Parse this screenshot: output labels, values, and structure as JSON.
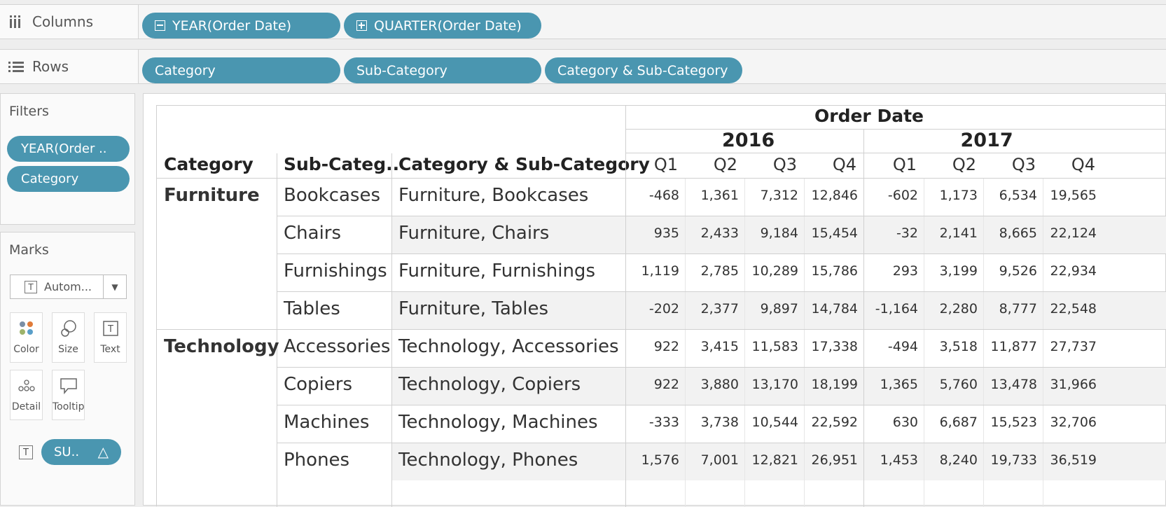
{
  "shelves": {
    "columns": {
      "label": "Columns",
      "pills": [
        "YEAR(Order Date)",
        "QUARTER(Order Date)"
      ]
    },
    "rows": {
      "label": "Rows",
      "pills": [
        "Category",
        "Sub-Category",
        "Category & Sub-Category"
      ]
    }
  },
  "filters": {
    "title": "Filters",
    "items": [
      "YEAR(Order ..",
      "Category"
    ]
  },
  "marks": {
    "title": "Marks",
    "type_select": "Autom...",
    "buttons": [
      "Color",
      "Size",
      "Text",
      "Detail",
      "Tooltip"
    ],
    "text_pill": "SU..",
    "text_pill_icon": "delta-icon"
  },
  "table": {
    "headers": {
      "category": "Category",
      "subcategory": "Sub-Categ..",
      "combo": "Category & Sub-Category",
      "order_date": "Order Date"
    },
    "years": [
      "2016",
      "2017"
    ],
    "quarters": [
      "Q1",
      "Q2",
      "Q3",
      "Q4",
      "Q1",
      "Q2",
      "Q3",
      "Q4"
    ],
    "categories": [
      {
        "name": "Furniture",
        "rows": [
          {
            "sub": "Bookcases",
            "combo": "Furniture, Bookcases",
            "values": [
              "-468",
              "1,361",
              "7,312",
              "12,846",
              "-602",
              "1,173",
              "6,534",
              "19,565"
            ]
          },
          {
            "sub": "Chairs",
            "combo": "Furniture, Chairs",
            "values": [
              "935",
              "2,433",
              "9,184",
              "15,454",
              "-32",
              "2,141",
              "8,665",
              "22,124"
            ]
          },
          {
            "sub": "Furnishings",
            "combo": "Furniture, Furnishings",
            "values": [
              "1,119",
              "2,785",
              "10,289",
              "15,786",
              "293",
              "3,199",
              "9,526",
              "22,934"
            ]
          },
          {
            "sub": "Tables",
            "combo": "Furniture, Tables",
            "values": [
              "-202",
              "2,377",
              "9,897",
              "14,784",
              "-1,164",
              "2,280",
              "8,777",
              "22,548"
            ]
          }
        ]
      },
      {
        "name": "Technology",
        "rows": [
          {
            "sub": "Accessories",
            "combo": "Technology, Accessories",
            "values": [
              "922",
              "3,415",
              "11,583",
              "17,338",
              "-494",
              "3,518",
              "11,877",
              "27,737"
            ]
          },
          {
            "sub": "Copiers",
            "combo": "Technology, Copiers",
            "values": [
              "922",
              "3,880",
              "13,170",
              "18,199",
              "1,365",
              "5,760",
              "13,478",
              "31,966"
            ]
          },
          {
            "sub": "Machines",
            "combo": "Technology, Machines",
            "values": [
              "-333",
              "3,738",
              "10,544",
              "22,592",
              "630",
              "6,687",
              "15,523",
              "32,706"
            ]
          },
          {
            "sub": "Phones",
            "combo": "Technology, Phones",
            "values": [
              "1,576",
              "7,001",
              "12,821",
              "26,951",
              "1,453",
              "8,240",
              "19,733",
              "36,519"
            ]
          }
        ]
      }
    ]
  },
  "colors": {
    "pill": "#4a96b0",
    "band": "#f2f2f2",
    "grid": "#d0d0d0"
  }
}
